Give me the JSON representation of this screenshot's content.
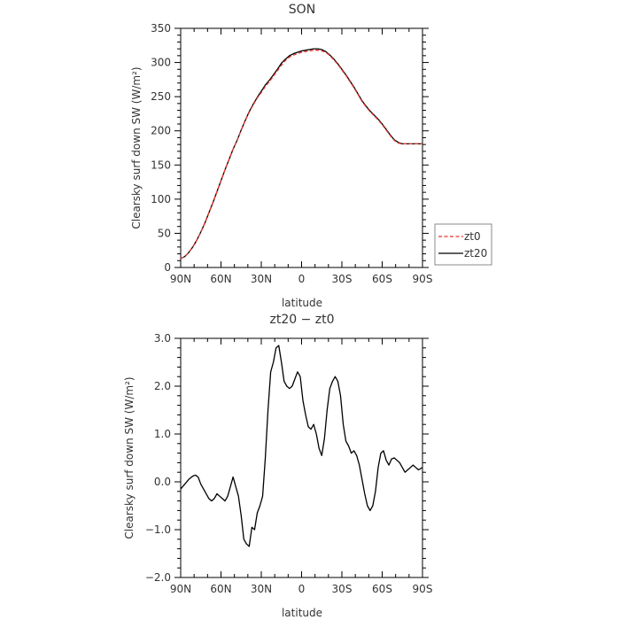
{
  "chart_data": [
    {
      "type": "line",
      "title": "SON",
      "xlabel": "latitude",
      "ylabel": "Clearsky surf down SW (W/m²)",
      "xlim": [
        -90,
        90
      ],
      "ylim": [
        0,
        350
      ],
      "x_ticks": [
        -90,
        -60,
        -30,
        0,
        30,
        60,
        90
      ],
      "x_tick_labels": [
        "90N",
        "60N",
        "30N",
        "0",
        "30S",
        "60S",
        "90S"
      ],
      "y_ticks": [
        0,
        50,
        100,
        150,
        200,
        250,
        300,
        350
      ],
      "y_tick_labels": [
        "0",
        "50",
        "100",
        "150",
        "200",
        "250",
        "300",
        "350"
      ],
      "grid": false,
      "legend": "right, outside",
      "series": [
        {
          "name": "zt0",
          "color": "#e8322a",
          "dash": "dashed",
          "x": [
            -90,
            -87,
            -84,
            -81,
            -78,
            -75,
            -72,
            -69,
            -66,
            -63,
            -60,
            -57,
            -54,
            -51,
            -48,
            -45,
            -42,
            -39,
            -36,
            -33,
            -30,
            -27,
            -24,
            -21,
            -18,
            -15,
            -12,
            -9,
            -6,
            -3,
            0,
            3,
            6,
            9,
            12,
            15,
            18,
            21,
            24,
            27,
            30,
            33,
            36,
            39,
            42,
            45,
            48,
            51,
            54,
            57,
            60,
            63,
            66,
            69,
            72,
            75,
            78,
            81,
            84,
            87,
            90
          ],
          "y": [
            13,
            16,
            22,
            30,
            40,
            52,
            65,
            80,
            95,
            111,
            127,
            143,
            158,
            173,
            186,
            201,
            215,
            227,
            238,
            248,
            256,
            265,
            272,
            280,
            288,
            296,
            303,
            308,
            311,
            313,
            315,
            316,
            317,
            318,
            318,
            317,
            315,
            310,
            304,
            297,
            289,
            281,
            272,
            263,
            253,
            243,
            235,
            228,
            222,
            216,
            209,
            201,
            193,
            186,
            182,
            181,
            181,
            181,
            181,
            181,
            181
          ]
        },
        {
          "name": "zt20",
          "color": "#000000",
          "dash": "solid",
          "x": [
            -90,
            -87,
            -84,
            -81,
            -78,
            -75,
            -72,
            -69,
            -66,
            -63,
            -60,
            -57,
            -54,
            -51,
            -48,
            -45,
            -42,
            -39,
            -36,
            -33,
            -30,
            -27,
            -24,
            -21,
            -18,
            -15,
            -12,
            -9,
            -6,
            -3,
            0,
            3,
            6,
            9,
            12,
            15,
            18,
            21,
            24,
            27,
            30,
            33,
            36,
            39,
            42,
            45,
            48,
            51,
            54,
            57,
            60,
            63,
            66,
            69,
            72,
            75,
            78,
            81,
            84,
            87,
            90
          ],
          "y": [
            13,
            16,
            22,
            30,
            40,
            52,
            65,
            80,
            95,
            111,
            127,
            143,
            158,
            173,
            186,
            201,
            215,
            228,
            239,
            249,
            258,
            267,
            274,
            282,
            290,
            299,
            305,
            310,
            313,
            315,
            317,
            318,
            319,
            320,
            320,
            319,
            316,
            311,
            305,
            298,
            290,
            282,
            273,
            264,
            254,
            244,
            236,
            229,
            223,
            217,
            210,
            202,
            194,
            187,
            183,
            181,
            181,
            181,
            181,
            181,
            181
          ]
        }
      ]
    },
    {
      "type": "line",
      "title": "zt20 − zt0",
      "xlabel": "latitude",
      "ylabel": "Clearsky surf down SW (W/m²)",
      "xlim": [
        -90,
        90
      ],
      "ylim": [
        -2.0,
        3.0
      ],
      "x_ticks": [
        -90,
        -60,
        -30,
        0,
        30,
        60,
        90
      ],
      "x_tick_labels": [
        "90N",
        "60N",
        "30N",
        "0",
        "30S",
        "60S",
        "90S"
      ],
      "y_ticks": [
        -2.0,
        -1.0,
        0.0,
        1.0,
        2.0,
        3.0
      ],
      "y_tick_labels": [
        "−2.0",
        "−1.0",
        "0.0",
        "1.0",
        "2.0",
        "3.0"
      ],
      "grid": false,
      "series": [
        {
          "color": "#000000",
          "dash": "solid",
          "x": [
            -90,
            -87,
            -84,
            -81,
            -79,
            -77,
            -75,
            -72,
            -69,
            -67,
            -65,
            -63,
            -61,
            -59,
            -57,
            -55,
            -53,
            -51,
            -49,
            -47,
            -45,
            -43,
            -41,
            -39,
            -37,
            -35,
            -33,
            -31,
            -29,
            -27,
            -25,
            -23,
            -21,
            -19,
            -17,
            -15,
            -13,
            -11,
            -9,
            -7,
            -5,
            -3,
            -1,
            1,
            3,
            5,
            7,
            9,
            11,
            13,
            15,
            17,
            19,
            21,
            23,
            25,
            27,
            29,
            31,
            33,
            35,
            37,
            39,
            41,
            43,
            45,
            47,
            49,
            51,
            53,
            55,
            57,
            59,
            61,
            63,
            65,
            67,
            69,
            71,
            73,
            75,
            77,
            79,
            81,
            83,
            85,
            87,
            90
          ],
          "y": [
            -0.15,
            -0.05,
            0.05,
            0.12,
            0.14,
            0.1,
            -0.05,
            -0.2,
            -0.35,
            -0.4,
            -0.35,
            -0.25,
            -0.3,
            -0.35,
            -0.4,
            -0.3,
            -0.1,
            0.1,
            -0.1,
            -0.3,
            -0.7,
            -1.2,
            -1.3,
            -1.35,
            -0.95,
            -1.0,
            -0.65,
            -0.5,
            -0.3,
            0.5,
            1.5,
            2.3,
            2.5,
            2.8,
            2.85,
            2.5,
            2.1,
            2.0,
            1.95,
            2.0,
            2.15,
            2.3,
            2.2,
            1.7,
            1.4,
            1.15,
            1.1,
            1.2,
            1.0,
            0.7,
            0.55,
            0.9,
            1.5,
            1.95,
            2.1,
            2.2,
            2.1,
            1.8,
            1.2,
            0.85,
            0.75,
            0.6,
            0.65,
            0.55,
            0.35,
            0.05,
            -0.25,
            -0.5,
            -0.6,
            -0.5,
            -0.2,
            0.3,
            0.6,
            0.65,
            0.45,
            0.35,
            0.48,
            0.5,
            0.45,
            0.4,
            0.3,
            0.2,
            0.25,
            0.3,
            0.35,
            0.3,
            0.25,
            0.3
          ]
        }
      ]
    }
  ]
}
